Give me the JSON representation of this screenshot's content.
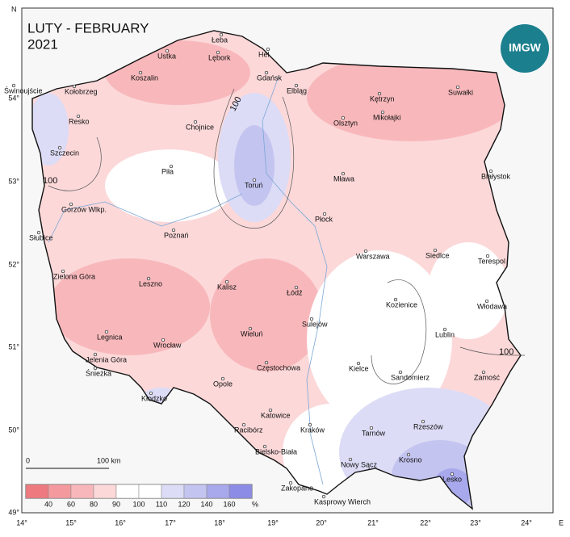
{
  "header": {
    "title": "LUTY - FEBRUARY",
    "year": "2021"
  },
  "logo": "IMGW",
  "compass": {
    "north": "N",
    "east": "E"
  },
  "axes": {
    "longitude": [
      "14°",
      "15°",
      "16°",
      "17°",
      "18°",
      "19°",
      "20°",
      "21°",
      "22°",
      "23°",
      "24°"
    ],
    "latitude": [
      "54°",
      "53°",
      "52°",
      "51°",
      "50°",
      "49°"
    ]
  },
  "cities": [
    "Łeba",
    "Ustka",
    "Lębork",
    "Hel",
    "Koszalin",
    "Gdańsk",
    "Świnoujście",
    "Kołobrzeg",
    "Elbląg",
    "Kętrzyn",
    "Suwałki",
    "Resko",
    "Chojnice",
    "Olsztyn",
    "Mikołajki",
    "Szczecin",
    "Piła",
    "Toruń",
    "Mława",
    "Białystok",
    "Gorzów Wlkp.",
    "Płock",
    "Poznań",
    "Słubice",
    "Warszawa",
    "Siedlce",
    "Terespol",
    "Zielona Góra",
    "Leszno",
    "Kalisz",
    "Łódź",
    "Kozienice",
    "Włodawa",
    "Sulejów",
    "Lublin",
    "Legnica",
    "Wrocław",
    "Wieluń",
    "Jelenia Góra",
    "Śnieżka",
    "Częstochowa",
    "Kielce",
    "Sandomierz",
    "Zamość",
    "Opole",
    "Kłodzko",
    "Katowice",
    "Rzeszów",
    "Racibórz",
    "Kraków",
    "Tarnów",
    "Bielsko-Biała",
    "Krosno",
    "Nowy Sącz",
    "Lesko",
    "Zakopane",
    "Kasprowy Wierch"
  ],
  "isoline_labels": [
    "100",
    "100",
    "100"
  ],
  "scale_bar": {
    "start": "0",
    "end": "100 km"
  },
  "legend": {
    "labels": [
      "40",
      "60",
      "80",
      "90",
      "100",
      "110",
      "120",
      "140",
      "160"
    ],
    "unit": "%"
  }
}
